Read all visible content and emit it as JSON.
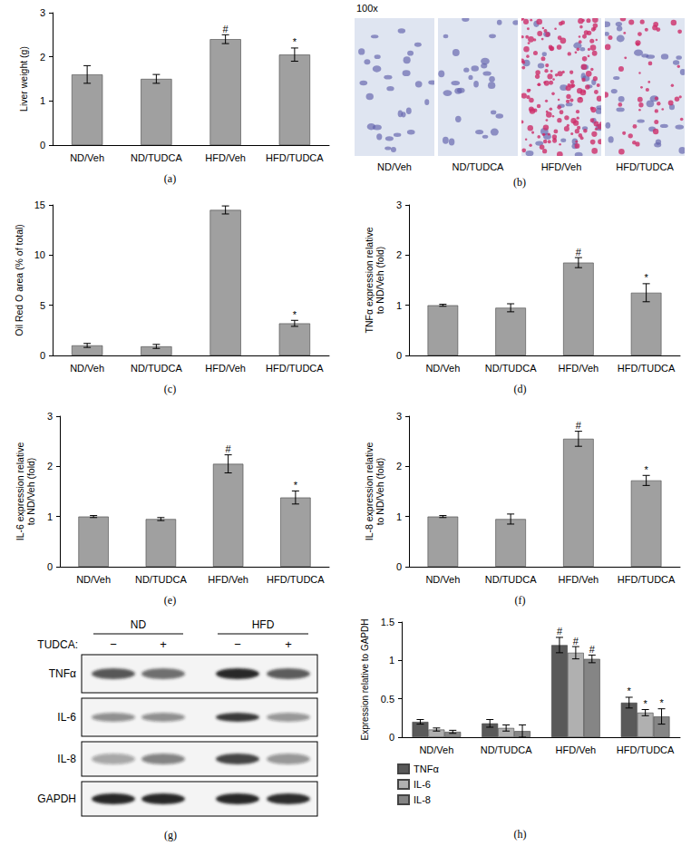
{
  "chart_data": [
    {
      "type": "bar",
      "title": "(a)",
      "ylabel": "Liver weight (g)",
      "categories": [
        "ND/Veh",
        "ND/TUDCA",
        "HFD/Veh",
        "HFD/TUDCA"
      ],
      "values": [
        1.6,
        1.5,
        2.4,
        2.05
      ],
      "errors": [
        0.2,
        0.1,
        0.1,
        0.15
      ],
      "annotations": [
        null,
        null,
        "#",
        "*"
      ],
      "color": "#a0a0a0",
      "ylim": [
        0,
        3
      ],
      "yticks": [
        0,
        1,
        2,
        3
      ],
      "grid": false
    },
    {
      "type": "bar",
      "title": "(c)",
      "ylabel": "Oil Red O area (% of total)",
      "categories": [
        "ND/Veh",
        "ND/TUDCA",
        "HFD/Veh",
        "HFD/TUDCA"
      ],
      "values": [
        1.0,
        0.9,
        14.5,
        3.2
      ],
      "errors": [
        0.2,
        0.2,
        0.4,
        0.3
      ],
      "annotations": [
        null,
        null,
        "#",
        "*"
      ],
      "color": "#a0a0a0",
      "ylim": [
        0,
        15
      ],
      "yticks": [
        0,
        5,
        10,
        15
      ],
      "grid": false
    },
    {
      "type": "bar",
      "title": "(d)",
      "ylabel": "TNFα expression relative to ND/Veh (fold)",
      "categories": [
        "ND/Veh",
        "ND/TUDCA",
        "HFD/Veh",
        "HFD/TUDCA"
      ],
      "values": [
        1.0,
        0.95,
        1.85,
        1.25
      ],
      "errors": [
        0.02,
        0.08,
        0.1,
        0.18
      ],
      "annotations": [
        null,
        null,
        "#",
        "*"
      ],
      "color": "#a0a0a0",
      "ylim": [
        0,
        3
      ],
      "yticks": [
        0,
        1,
        2,
        3
      ],
      "grid": false
    },
    {
      "type": "bar",
      "title": "(e)",
      "ylabel": "IL-6 expression relative to ND/Veh (fold)",
      "categories": [
        "ND/Veh",
        "ND/TUDCA",
        "HFD/Veh",
        "HFD/TUDCA"
      ],
      "values": [
        1.0,
        0.95,
        2.05,
        1.38
      ],
      "errors": [
        0.02,
        0.03,
        0.18,
        0.13
      ],
      "annotations": [
        null,
        null,
        "#",
        "*"
      ],
      "color": "#a0a0a0",
      "ylim": [
        0,
        3
      ],
      "yticks": [
        0,
        1,
        2,
        3
      ],
      "grid": false
    },
    {
      "type": "bar",
      "title": "(f)",
      "ylabel": "IL-8 expression relative to ND/Veh (fold)",
      "categories": [
        "ND/Veh",
        "ND/TUDCA",
        "HFD/Veh",
        "HFD/TUDCA"
      ],
      "values": [
        1.0,
        0.95,
        2.55,
        1.72
      ],
      "errors": [
        0.02,
        0.1,
        0.15,
        0.1
      ],
      "annotations": [
        null,
        null,
        "#",
        "*"
      ],
      "color": "#a0a0a0",
      "ylim": [
        0,
        3
      ],
      "yticks": [
        0,
        1,
        2,
        3
      ],
      "grid": false
    },
    {
      "type": "bar",
      "title": "(h)",
      "ylabel": "Expression relative to GAPDH",
      "categories": [
        "ND/Veh",
        "ND/TUDCA",
        "HFD/Veh",
        "HFD/TUDCA"
      ],
      "series": [
        {
          "name": "TNFα",
          "color": "#595959",
          "values": [
            0.2,
            0.18,
            1.2,
            0.45
          ],
          "errors": [
            0.03,
            0.05,
            0.1,
            0.07
          ],
          "annotations": [
            null,
            null,
            "#",
            "*"
          ]
        },
        {
          "name": "IL-6",
          "color": "#b0b0b0",
          "values": [
            0.1,
            0.12,
            1.1,
            0.32
          ],
          "errors": [
            0.02,
            0.04,
            0.08,
            0.04
          ],
          "annotations": [
            null,
            null,
            "#",
            "*"
          ]
        },
        {
          "name": "IL-8",
          "color": "#858585",
          "values": [
            0.07,
            0.08,
            1.02,
            0.27
          ],
          "errors": [
            0.02,
            0.08,
            0.05,
            0.1
          ],
          "annotations": [
            null,
            null,
            "#",
            "*"
          ]
        }
      ],
      "ylim": [
        0,
        1.5
      ],
      "yticks": [
        0,
        0.5,
        1,
        1.5
      ],
      "grid": false,
      "legend": "bottom-left"
    }
  ],
  "micrographs": {
    "title": "(b)",
    "magnification": "100x",
    "labels": [
      "ND/Veh",
      "ND/TUDCA",
      "HFD/Veh",
      "HFD/TUDCA"
    ]
  },
  "western_blot": {
    "title": "(g)",
    "groups": [
      "ND",
      "HFD"
    ],
    "treatment_label": "TUDCA:",
    "lanes": [
      "−",
      "+",
      "−",
      "+"
    ],
    "rows": [
      "TNFα",
      "IL-6",
      "IL-8",
      "GAPDH"
    ]
  }
}
